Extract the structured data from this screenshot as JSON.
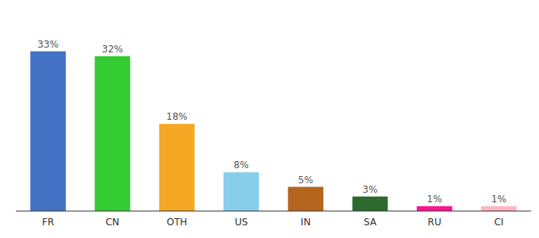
{
  "chart_data": {
    "type": "bar",
    "categories": [
      "FR",
      "CN",
      "OTH",
      "US",
      "IN",
      "SA",
      "RU",
      "CI"
    ],
    "values": [
      33,
      32,
      18,
      8,
      5,
      3,
      1,
      1
    ],
    "value_labels": [
      "33%",
      "32%",
      "18%",
      "8%",
      "5%",
      "3%",
      "1%",
      "1%"
    ],
    "colors": [
      "#4472c4",
      "#33cc33",
      "#f5a623",
      "#87ceeb",
      "#b5651d",
      "#2d6a2d",
      "#ff1493",
      "#ffb6c1"
    ],
    "ylim": [
      0,
      40
    ],
    "data_labels": true,
    "tick_labels": "x"
  }
}
